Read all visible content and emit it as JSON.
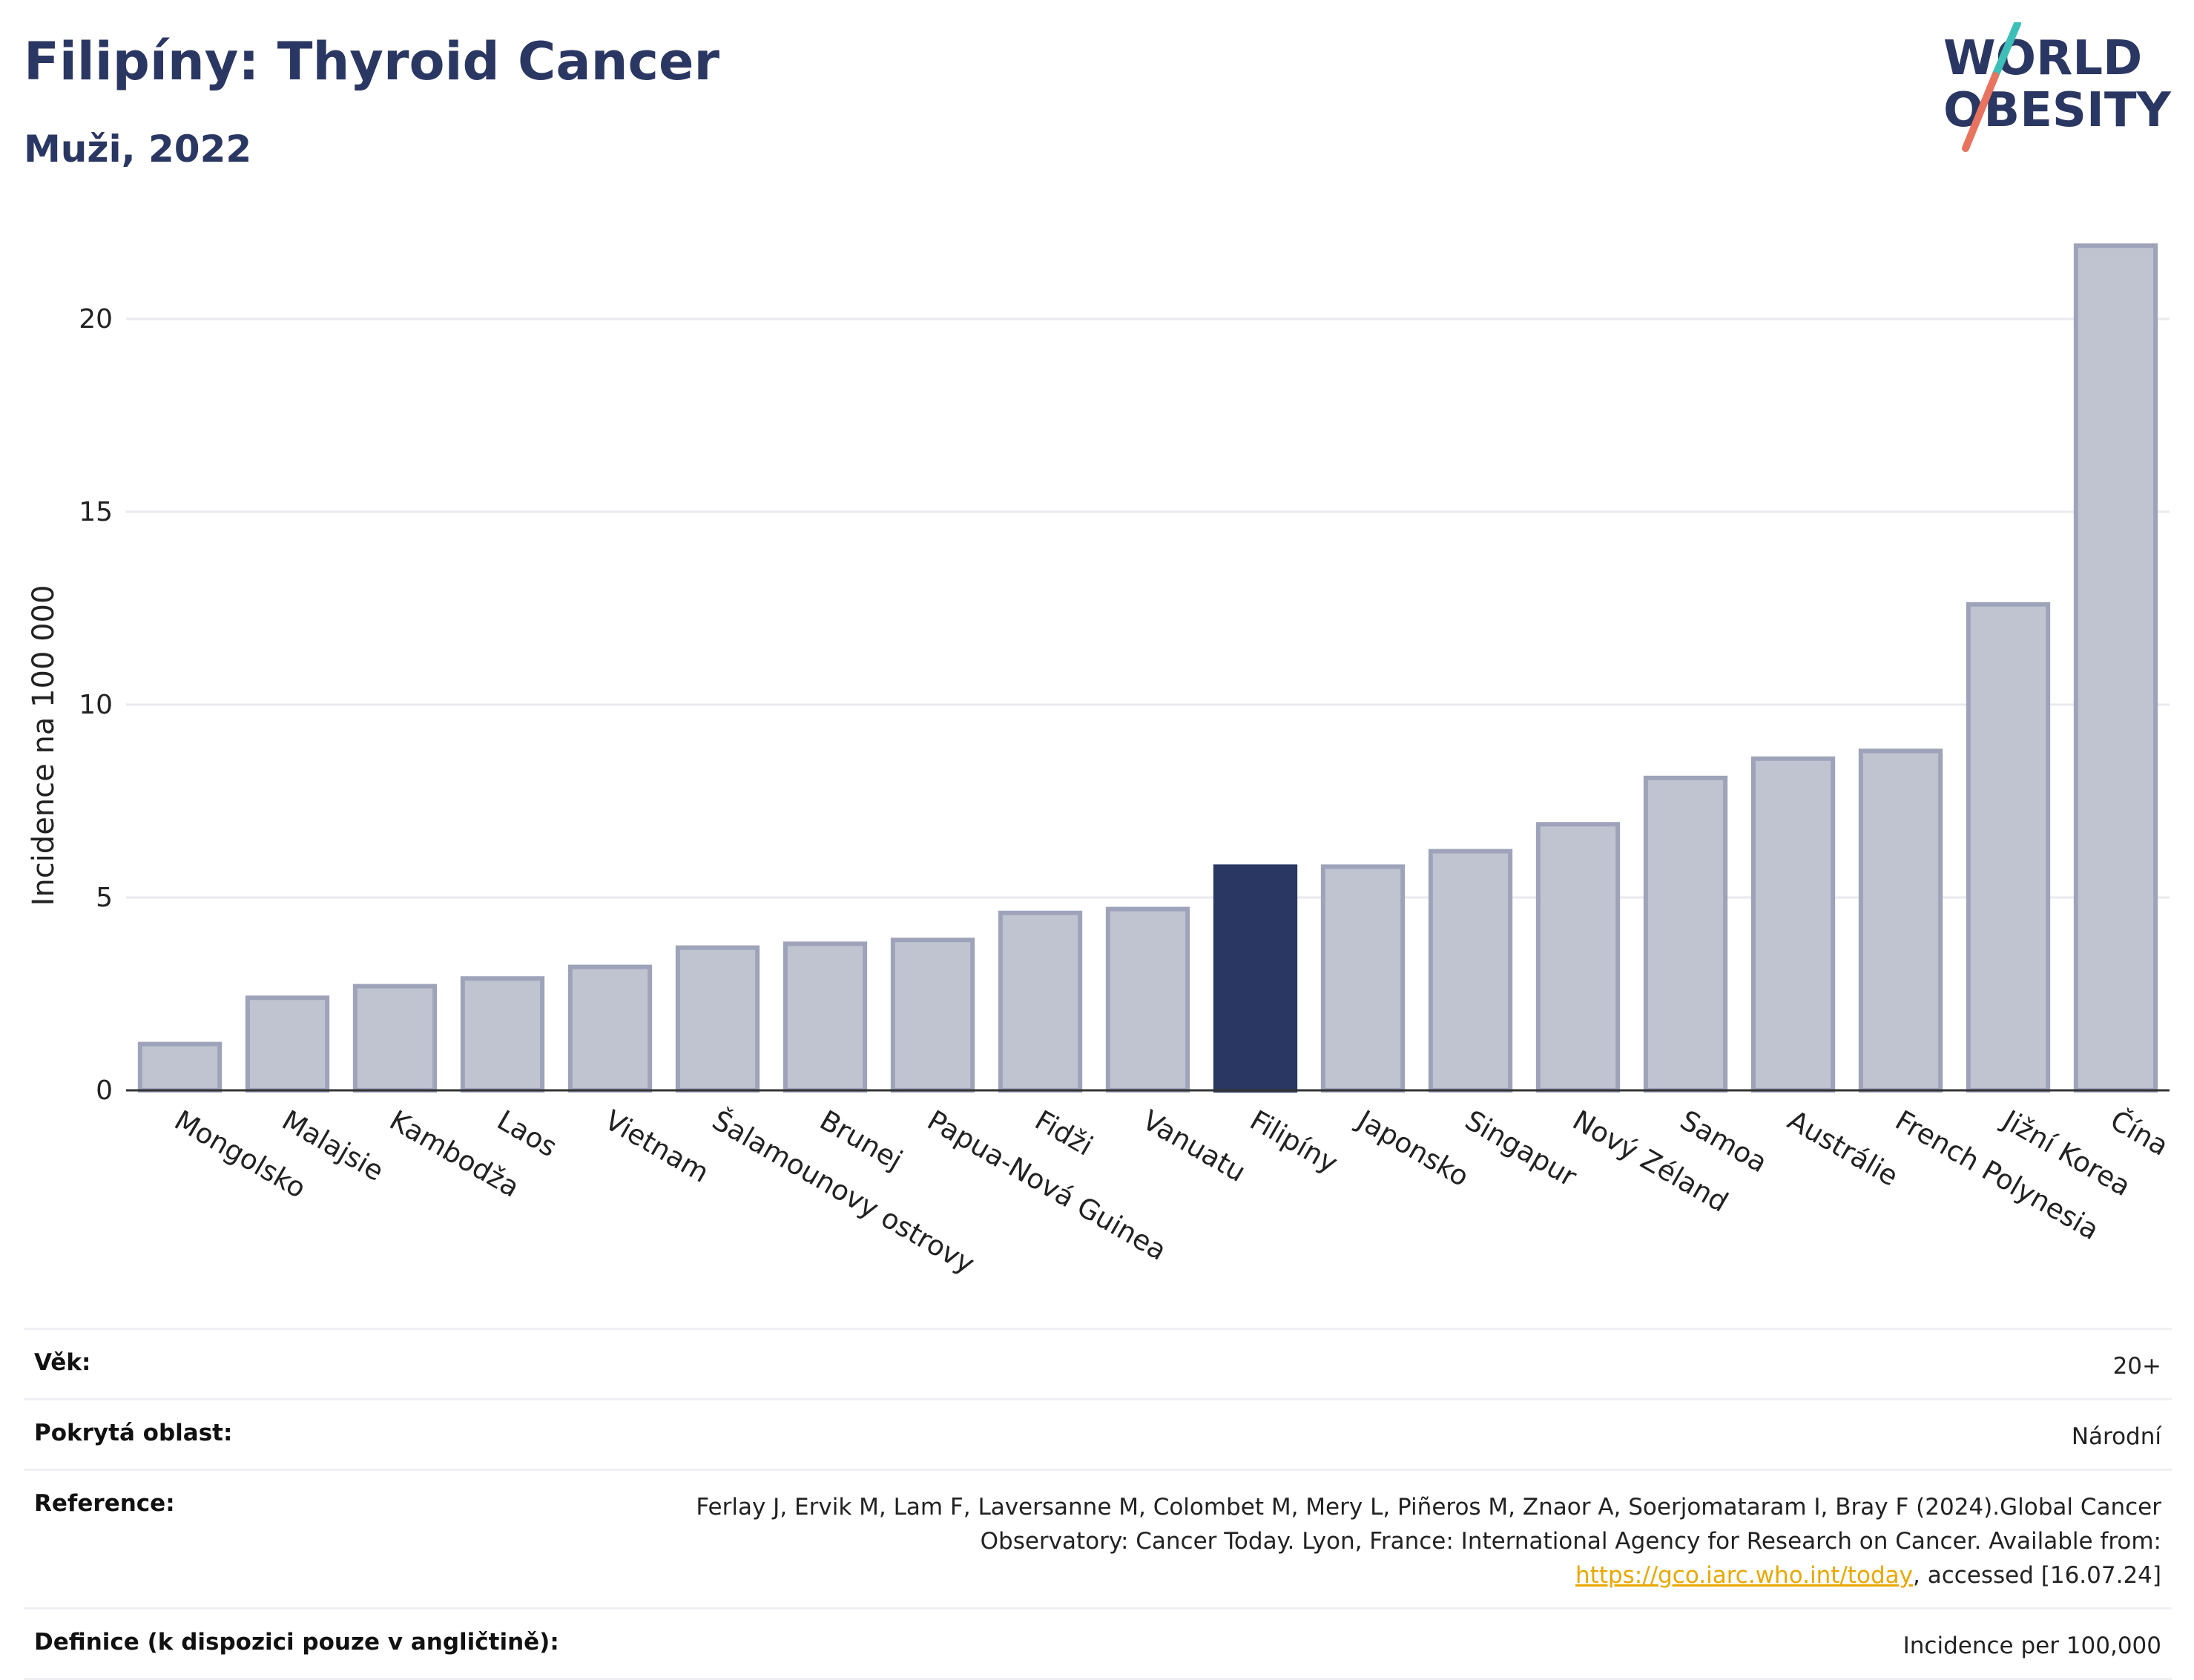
{
  "header": {
    "title": "Filipíny: Thyroid Cancer",
    "subtitle": "Muži, 2022"
  },
  "logo": {
    "line1": "WORLD",
    "line2": "OBESITY"
  },
  "chart_data": {
    "type": "bar",
    "categories": [
      "Mongolsko",
      "Malajsie",
      "Kambodža",
      "Laos",
      "Vietnam",
      "Šalamounovy ostrovy",
      "Brunej",
      "Papua-Nová Guinea",
      "Fidži",
      "Vanuatu",
      "Filipíny",
      "Japonsko",
      "Singapur",
      "Nový Zéland",
      "Samoa",
      "Austrálie",
      "French Polynesia",
      "Jižní Korea",
      "Čína"
    ],
    "values": [
      1.2,
      2.4,
      2.7,
      2.9,
      3.2,
      3.7,
      3.8,
      3.9,
      4.6,
      4.7,
      5.8,
      5.8,
      6.2,
      6.9,
      8.1,
      8.6,
      8.8,
      12.6,
      21.9
    ],
    "highlight": "Filipíny",
    "ylabel": "Incidence na 100 000",
    "ylim": [
      0,
      22.5
    ],
    "yticks": [
      0,
      5,
      10,
      15,
      20
    ],
    "grid": true,
    "colors": {
      "bar": "#c0c3d0",
      "bar_border": "#9ea3b9",
      "highlight": "#2b3763",
      "grid": "#e8eaef"
    }
  },
  "info": {
    "age_label": "Věk:",
    "age_value": "20+",
    "area_label": "Pokrytá oblast:",
    "area_value": "Národní",
    "reference_label": "Reference:",
    "reference_text_before": "Ferlay J, Ervik M, Lam F, Laversanne M, Colombet M, Mery L, Piñeros M, Znaor A, Soerjomataram I, Bray F (2024).Global Cancer Observatory: Cancer Today. Lyon, France: International Agency for Research on Cancer. Available from: ",
    "reference_link": "https://gco.iarc.who.int/today",
    "reference_text_after": ", accessed [16.07.24]",
    "definition_label": "Definice (k dispozici pouze v angličtině):",
    "definition_value": "Incidence per 100,000"
  }
}
